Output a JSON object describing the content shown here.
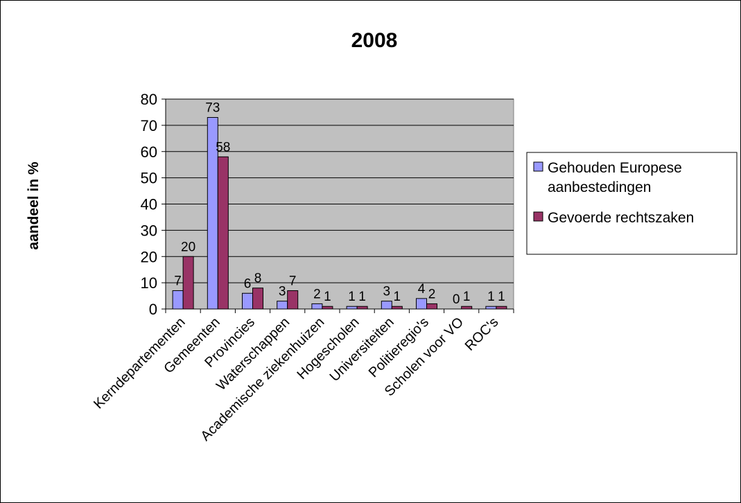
{
  "chart_data": {
    "type": "bar",
    "title": "2008",
    "ylabel": "aandeel in %",
    "xlabel": "",
    "ylim": [
      0,
      80
    ],
    "yticks": [
      0,
      10,
      20,
      30,
      40,
      50,
      60,
      70,
      80
    ],
    "grid": true,
    "legend_position": "right",
    "categories": [
      "Kerndepartementen",
      "Gemeenten",
      "Provincies",
      "Waterschappen",
      "Academische ziekenhuizen",
      "Hogescholen",
      "Universiteiten",
      "Politieregio's",
      "Scholen voor VO",
      "ROC's"
    ],
    "series": [
      {
        "name": "Gehouden Europese aanbestedingen",
        "legend_lines": [
          "Gehouden Europese",
          "aanbestedingen"
        ],
        "color": "#9999ff",
        "values": [
          7,
          73,
          6,
          3,
          2,
          1,
          3,
          4,
          0,
          1
        ]
      },
      {
        "name": "Gevoerde rechtszaken",
        "legend_lines": [
          "Gevoerde rechtszaken"
        ],
        "color": "#993366",
        "values": [
          20,
          58,
          8,
          7,
          1,
          1,
          1,
          2,
          1,
          1
        ]
      }
    ],
    "plot_background": "#c0c0c0"
  }
}
